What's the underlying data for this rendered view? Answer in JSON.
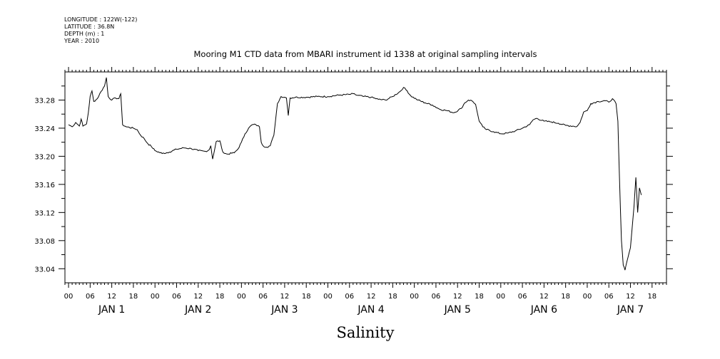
{
  "header": {
    "lines": [
      "LONGITUDE : 122W(-122)",
      "LATITUDE : 36.8N",
      "DEPTH (m) : 1",
      "YEAR : 2010"
    ]
  },
  "chart_data": {
    "type": "line",
    "title": "Mooring M1 CTD data from MBARI instrument id 1338 at original sampling intervals",
    "xlabel": "Salinity",
    "ylabel": "",
    "x_unit": "hours since 2010-01-01 00:00",
    "xlim": [
      -1,
      166
    ],
    "ylim": [
      33.02,
      33.32
    ],
    "y_ticks": [
      "33.04",
      "33.08",
      "33.12",
      "33.16",
      "33.20",
      "33.24",
      "33.28"
    ],
    "y_tick_values": [
      33.04,
      33.08,
      33.12,
      33.16,
      33.2,
      33.24,
      33.28
    ],
    "x_hour_ticks": [
      "00",
      "06",
      "12",
      "18",
      "00",
      "06",
      "12",
      "18",
      "00",
      "06",
      "12",
      "18",
      "00",
      "06",
      "12",
      "18",
      "00",
      "06",
      "12",
      "18",
      "00",
      "06",
      "12",
      "18",
      "00",
      "06",
      "12",
      "18"
    ],
    "x_day_labels": [
      "JAN  1",
      "JAN  2",
      "JAN  3",
      "JAN  4",
      "JAN  5",
      "JAN  6",
      "JAN  7"
    ],
    "grid": false,
    "series": [
      {
        "values": [
          [
            0,
            33.245
          ],
          [
            1,
            33.242
          ],
          [
            2,
            33.248
          ],
          [
            3,
            33.243
          ],
          [
            3.5,
            33.253
          ],
          [
            4,
            33.243
          ],
          [
            5,
            33.246
          ],
          [
            5.5,
            33.262
          ],
          [
            6,
            33.285
          ],
          [
            6.5,
            33.293
          ],
          [
            7,
            33.278
          ],
          [
            8,
            33.282
          ],
          [
            9,
            33.292
          ],
          [
            10,
            33.3
          ],
          [
            10.5,
            33.312
          ],
          [
            11,
            33.285
          ],
          [
            12,
            33.28
          ],
          [
            13,
            33.283
          ],
          [
            14,
            33.282
          ],
          [
            14.5,
            33.289
          ],
          [
            15,
            33.245
          ],
          [
            16,
            33.242
          ],
          [
            18,
            33.24
          ],
          [
            19,
            33.238
          ],
          [
            20,
            33.23
          ],
          [
            21,
            33.225
          ],
          [
            22,
            33.218
          ],
          [
            23,
            33.214
          ],
          [
            24,
            33.208
          ],
          [
            26,
            33.204
          ],
          [
            28,
            33.206
          ],
          [
            30,
            33.21
          ],
          [
            32,
            33.212
          ],
          [
            34,
            33.211
          ],
          [
            36,
            33.208
          ],
          [
            38,
            33.207
          ],
          [
            39,
            33.209
          ],
          [
            39.5,
            33.215
          ],
          [
            40,
            33.196
          ],
          [
            40.5,
            33.208
          ],
          [
            41,
            33.221
          ],
          [
            42,
            33.222
          ],
          [
            42.5,
            33.212
          ],
          [
            43,
            33.205
          ],
          [
            44,
            33.203
          ],
          [
            46,
            33.205
          ],
          [
            47,
            33.21
          ],
          [
            48,
            33.22
          ],
          [
            49,
            33.232
          ],
          [
            50,
            33.24
          ],
          [
            51,
            33.245
          ],
          [
            52,
            33.245
          ],
          [
            53,
            33.242
          ],
          [
            53.5,
            33.22
          ],
          [
            54,
            33.215
          ],
          [
            55,
            33.213
          ],
          [
            56,
            33.215
          ],
          [
            57,
            33.23
          ],
          [
            58,
            33.275
          ],
          [
            59,
            33.285
          ],
          [
            60,
            33.284
          ],
          [
            60.5,
            33.283
          ],
          [
            61,
            33.258
          ],
          [
            61.5,
            33.283
          ],
          [
            63,
            33.284
          ],
          [
            66,
            33.284
          ],
          [
            69,
            33.285
          ],
          [
            72,
            33.285
          ],
          [
            75,
            33.287
          ],
          [
            78,
            33.288
          ],
          [
            79,
            33.289
          ],
          [
            80,
            33.287
          ],
          [
            82,
            33.285
          ],
          [
            84,
            33.284
          ],
          [
            86,
            33.281
          ],
          [
            88,
            33.28
          ],
          [
            90,
            33.285
          ],
          [
            92,
            33.292
          ],
          [
            93,
            33.298
          ],
          [
            94,
            33.293
          ],
          [
            95,
            33.286
          ],
          [
            97,
            33.28
          ],
          [
            99,
            33.276
          ],
          [
            101,
            33.273
          ],
          [
            103,
            33.267
          ],
          [
            105,
            33.265
          ],
          [
            107,
            33.262
          ],
          [
            109,
            33.268
          ],
          [
            110,
            33.276
          ],
          [
            111,
            33.28
          ],
          [
            112,
            33.279
          ],
          [
            113,
            33.274
          ],
          [
            114,
            33.25
          ],
          [
            115,
            33.242
          ],
          [
            116,
            33.238
          ],
          [
            118,
            33.235
          ],
          [
            120,
            33.232
          ],
          [
            122,
            33.233
          ],
          [
            124,
            33.236
          ],
          [
            126,
            33.24
          ],
          [
            128,
            33.245
          ],
          [
            129,
            33.252
          ],
          [
            130,
            33.254
          ],
          [
            132,
            33.25
          ],
          [
            134,
            33.249
          ],
          [
            136,
            33.247
          ],
          [
            138,
            33.244
          ],
          [
            140,
            33.243
          ],
          [
            141,
            33.242
          ],
          [
            142,
            33.248
          ],
          [
            143,
            33.263
          ],
          [
            144,
            33.265
          ],
          [
            145,
            33.275
          ],
          [
            147,
            33.278
          ],
          [
            149,
            33.279
          ],
          [
            150,
            33.277
          ],
          [
            151,
            33.282
          ],
          [
            152,
            33.275
          ],
          [
            152.5,
            33.25
          ],
          [
            153,
            33.16
          ],
          [
            153.5,
            33.08
          ],
          [
            154,
            33.045
          ],
          [
            154.5,
            33.038
          ],
          [
            155,
            33.05
          ],
          [
            156,
            33.07
          ],
          [
            157,
            33.13
          ],
          [
            157.5,
            33.17
          ],
          [
            158,
            33.12
          ],
          [
            158.5,
            33.155
          ],
          [
            159,
            33.145
          ]
        ]
      }
    ]
  }
}
